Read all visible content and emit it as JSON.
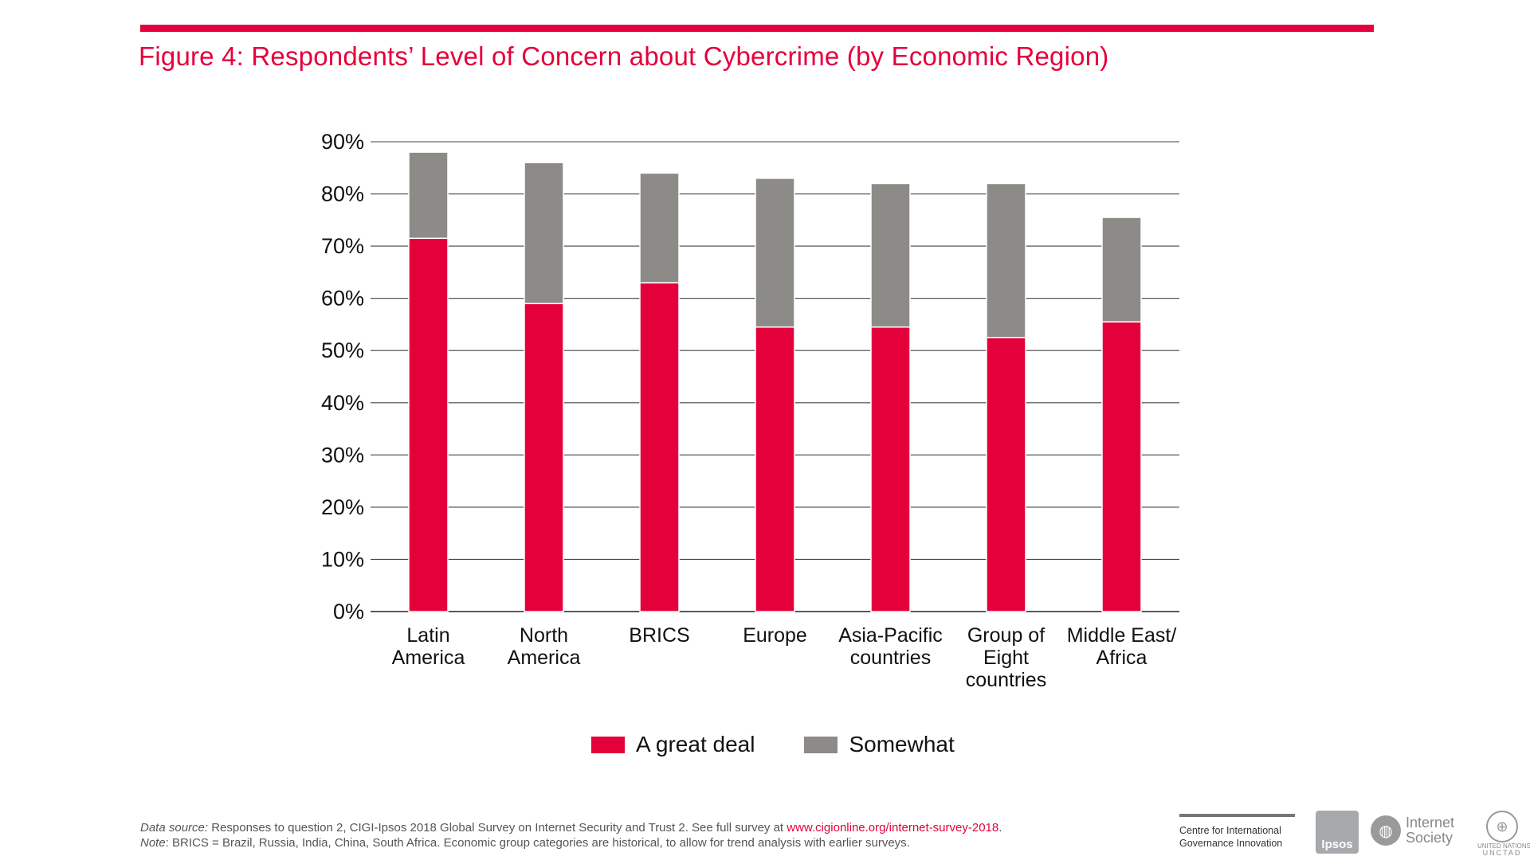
{
  "figure_title": "Figure 4: Respondents’ Level of Concern about Cybercrime (by Economic Region)",
  "colors": {
    "accent": "#e4003b",
    "somewhat": "#8c8b88",
    "grid": "#444444"
  },
  "chart_data": {
    "type": "bar",
    "stacked": true,
    "title": "Figure 4: Respondents’ Level of Concern about Cybercrime (by Economic Region)",
    "xlabel": "",
    "ylabel": "",
    "ylim": [
      0,
      90
    ],
    "yticks": [
      0,
      10,
      20,
      30,
      40,
      50,
      60,
      70,
      80,
      90
    ],
    "ytick_labels": [
      "0%",
      "10%",
      "20%",
      "30%",
      "40%",
      "50%",
      "60%",
      "70%",
      "80%",
      "90%"
    ],
    "grid": true,
    "legend_position": "bottom-center",
    "categories": [
      [
        "Latin",
        "America"
      ],
      [
        "North",
        "America"
      ],
      [
        "BRICS"
      ],
      [
        "Europe"
      ],
      [
        "Asia-Pacific",
        "countries"
      ],
      [
        "Group of",
        "Eight",
        "countries"
      ],
      [
        "Middle East/",
        "Africa"
      ]
    ],
    "series": [
      {
        "name": "A great deal",
        "color": "#e4003b",
        "values": [
          71.5,
          59,
          63,
          54.5,
          54.5,
          52.5,
          55.5
        ]
      },
      {
        "name": "Somewhat",
        "color": "#8c8b88",
        "values": [
          16.5,
          27,
          21,
          28.5,
          27.5,
          29.5,
          20
        ]
      }
    ]
  },
  "legend": [
    {
      "label": "A great deal",
      "color": "#e4003b"
    },
    {
      "label": "Somewhat",
      "color": "#8c8b88"
    }
  ],
  "footer": {
    "source_label": "Data source:",
    "source_text": " Responses to question 2, CIGI-Ipsos 2018 Global Survey on Internet Security and Trust 2. See full survey at ",
    "source_link": "www.cigionline.org/internet-survey-2018",
    "source_end": ".",
    "note_label": "Note",
    "note_text": ": BRICS = Brazil, Russia, India, China, South Africa. Economic group categories are historical, to allow for trend analysis with earlier surveys."
  },
  "logos": {
    "cigi_line1": "Centre for International",
    "cigi_line2": "Governance Innovation",
    "ipsos": "Ipsos",
    "isoc_line1": "Internet",
    "isoc_line2": "Society",
    "un_line1": "UNITED NATIONS",
    "un_line2": "UNCTAD"
  }
}
